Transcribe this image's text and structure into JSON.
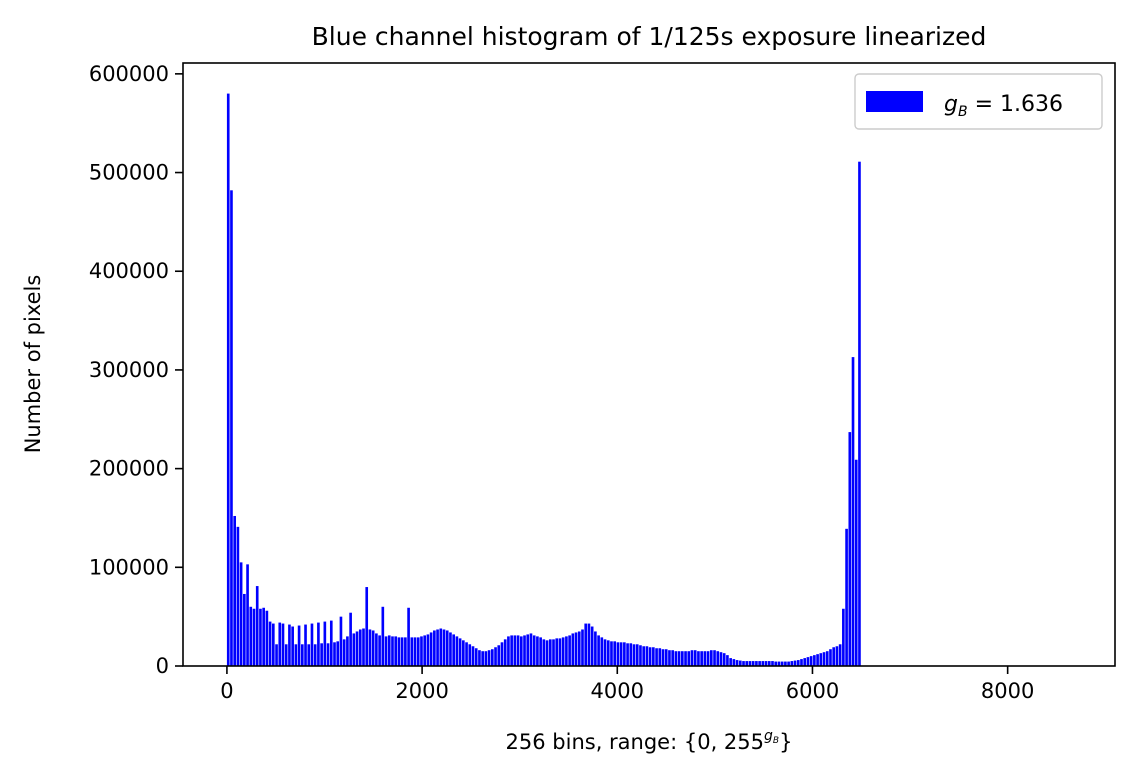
{
  "chart_data": {
    "type": "bar",
    "title": "Blue channel histogram of 1/125s exposure linearized",
    "xlabel_main": "256 bins, range: {0, 255",
    "xlabel_sup": "g",
    "xlabel_sup_sub": "B",
    "xlabel_end": "}",
    "ylabel": "Number of pixels",
    "xlim": [
      -450,
      9100
    ],
    "ylim": [
      0,
      611000
    ],
    "xticks": [
      0,
      2000,
      4000,
      6000,
      8000
    ],
    "xtick_labels": [
      "0",
      "2000",
      "4000",
      "6000",
      "8000"
    ],
    "yticks": [
      0,
      100000,
      200000,
      300000,
      400000,
      500000,
      600000
    ],
    "ytick_labels": [
      "0",
      "100000",
      "200000",
      "300000",
      "400000",
      "500000",
      "600000"
    ],
    "grid": false,
    "legend_placement": "top-right",
    "series": [
      {
        "name": "g_B = 1.636",
        "legend_var": "g",
        "legend_sub": "B",
        "legend_value": " = 1.636",
        "color": "#0000ff",
        "bins": [
          [
            0,
            580000
          ],
          [
            33,
            482000
          ],
          [
            66,
            152000
          ],
          [
            99,
            141000
          ],
          [
            132,
            105000
          ],
          [
            165,
            73000
          ],
          [
            198,
            103000
          ],
          [
            231,
            60000
          ],
          [
            264,
            58000
          ],
          [
            297,
            81000
          ],
          [
            330,
            58000
          ],
          [
            363,
            59000
          ],
          [
            396,
            56000
          ],
          [
            429,
            45000
          ],
          [
            462,
            43000
          ],
          [
            495,
            22000
          ],
          [
            528,
            44000
          ],
          [
            561,
            43000
          ],
          [
            594,
            22000
          ],
          [
            627,
            42000
          ],
          [
            660,
            40000
          ],
          [
            693,
            22000
          ],
          [
            726,
            41000
          ],
          [
            759,
            22000
          ],
          [
            792,
            42000
          ],
          [
            825,
            22000
          ],
          [
            858,
            43000
          ],
          [
            891,
            22000
          ],
          [
            924,
            44000
          ],
          [
            957,
            23000
          ],
          [
            990,
            45000
          ],
          [
            1023,
            23000
          ],
          [
            1056,
            46000
          ],
          [
            1089,
            24000
          ],
          [
            1122,
            25000
          ],
          [
            1155,
            50000
          ],
          [
            1188,
            27000
          ],
          [
            1221,
            30000
          ],
          [
            1254,
            54000
          ],
          [
            1287,
            33000
          ],
          [
            1320,
            35000
          ],
          [
            1353,
            37000
          ],
          [
            1386,
            38000
          ],
          [
            1419,
            80000
          ],
          [
            1452,
            37000
          ],
          [
            1485,
            36000
          ],
          [
            1518,
            33000
          ],
          [
            1551,
            31000
          ],
          [
            1584,
            60000
          ],
          [
            1617,
            30000
          ],
          [
            1650,
            31000
          ],
          [
            1683,
            30000
          ],
          [
            1716,
            30000
          ],
          [
            1749,
            29000
          ],
          [
            1782,
            29000
          ],
          [
            1815,
            29000
          ],
          [
            1848,
            59000
          ],
          [
            1881,
            29000
          ],
          [
            1914,
            29000
          ],
          [
            1947,
            29000
          ],
          [
            1980,
            30000
          ],
          [
            2013,
            31000
          ],
          [
            2046,
            32000
          ],
          [
            2079,
            34000
          ],
          [
            2112,
            36000
          ],
          [
            2145,
            37000
          ],
          [
            2178,
            38000
          ],
          [
            2211,
            37000
          ],
          [
            2244,
            36000
          ],
          [
            2277,
            34000
          ],
          [
            2310,
            32000
          ],
          [
            2343,
            30000
          ],
          [
            2376,
            28000
          ],
          [
            2409,
            26000
          ],
          [
            2442,
            24000
          ],
          [
            2475,
            22000
          ],
          [
            2508,
            20000
          ],
          [
            2541,
            18000
          ],
          [
            2574,
            16000
          ],
          [
            2607,
            15000
          ],
          [
            2640,
            15000
          ],
          [
            2673,
            16000
          ],
          [
            2706,
            17000
          ],
          [
            2739,
            19000
          ],
          [
            2772,
            21000
          ],
          [
            2805,
            24000
          ],
          [
            2838,
            27000
          ],
          [
            2871,
            30000
          ],
          [
            2904,
            31000
          ],
          [
            2937,
            31000
          ],
          [
            2970,
            31000
          ],
          [
            3003,
            30000
          ],
          [
            3036,
            31000
          ],
          [
            3069,
            32000
          ],
          [
            3102,
            33000
          ],
          [
            3135,
            31000
          ],
          [
            3168,
            30000
          ],
          [
            3201,
            29000
          ],
          [
            3234,
            27000
          ],
          [
            3267,
            26000
          ],
          [
            3300,
            27000
          ],
          [
            3333,
            27000
          ],
          [
            3366,
            28000
          ],
          [
            3399,
            28000
          ],
          [
            3432,
            29000
          ],
          [
            3465,
            30000
          ],
          [
            3498,
            31000
          ],
          [
            3531,
            33000
          ],
          [
            3564,
            34000
          ],
          [
            3597,
            35000
          ],
          [
            3630,
            37000
          ],
          [
            3663,
            43000
          ],
          [
            3696,
            43000
          ],
          [
            3729,
            40000
          ],
          [
            3762,
            35000
          ],
          [
            3795,
            31000
          ],
          [
            3828,
            29000
          ],
          [
            3861,
            27000
          ],
          [
            3894,
            26000
          ],
          [
            3927,
            25000
          ],
          [
            3960,
            25000
          ],
          [
            3993,
            24000
          ],
          [
            4026,
            24000
          ],
          [
            4059,
            24000
          ],
          [
            4092,
            23000
          ],
          [
            4125,
            23000
          ],
          [
            4158,
            22000
          ],
          [
            4191,
            22000
          ],
          [
            4224,
            21000
          ],
          [
            4257,
            20000
          ],
          [
            4290,
            20000
          ],
          [
            4323,
            19000
          ],
          [
            4356,
            19000
          ],
          [
            4389,
            18000
          ],
          [
            4422,
            18000
          ],
          [
            4455,
            17000
          ],
          [
            4488,
            17000
          ],
          [
            4521,
            16000
          ],
          [
            4554,
            16000
          ],
          [
            4587,
            15000
          ],
          [
            4620,
            15000
          ],
          [
            4653,
            15000
          ],
          [
            4686,
            15000
          ],
          [
            4719,
            15000
          ],
          [
            4752,
            16000
          ],
          [
            4785,
            16000
          ],
          [
            4818,
            15000
          ],
          [
            4851,
            15000
          ],
          [
            4884,
            15000
          ],
          [
            4917,
            15000
          ],
          [
            4950,
            16000
          ],
          [
            4983,
            16000
          ],
          [
            5016,
            15000
          ],
          [
            5049,
            14000
          ],
          [
            5082,
            13000
          ],
          [
            5115,
            11000
          ],
          [
            5148,
            8000
          ],
          [
            5181,
            7000
          ],
          [
            5214,
            6000
          ],
          [
            5247,
            5500
          ],
          [
            5280,
            5000
          ],
          [
            5313,
            5000
          ],
          [
            5346,
            5000
          ],
          [
            5379,
            5000
          ],
          [
            5412,
            5000
          ],
          [
            5445,
            5000
          ],
          [
            5478,
            5000
          ],
          [
            5511,
            5000
          ],
          [
            5544,
            5000
          ],
          [
            5577,
            5000
          ],
          [
            5610,
            4500
          ],
          [
            5643,
            4500
          ],
          [
            5676,
            4500
          ],
          [
            5709,
            4500
          ],
          [
            5742,
            4500
          ],
          [
            5775,
            5000
          ],
          [
            5808,
            5500
          ],
          [
            5841,
            6000
          ],
          [
            5874,
            7000
          ],
          [
            5907,
            8000
          ],
          [
            5940,
            9000
          ],
          [
            5973,
            10000
          ],
          [
            6006,
            11000
          ],
          [
            6039,
            12000
          ],
          [
            6072,
            13000
          ],
          [
            6105,
            14000
          ],
          [
            6138,
            15000
          ],
          [
            6171,
            17000
          ],
          [
            6204,
            19000
          ],
          [
            6237,
            20000
          ],
          [
            6270,
            22000
          ],
          [
            6303,
            58000
          ],
          [
            6336,
            139000
          ],
          [
            6369,
            237000
          ],
          [
            6402,
            313000
          ],
          [
            6435,
            209000
          ],
          [
            6468,
            511000
          ]
        ]
      }
    ]
  }
}
